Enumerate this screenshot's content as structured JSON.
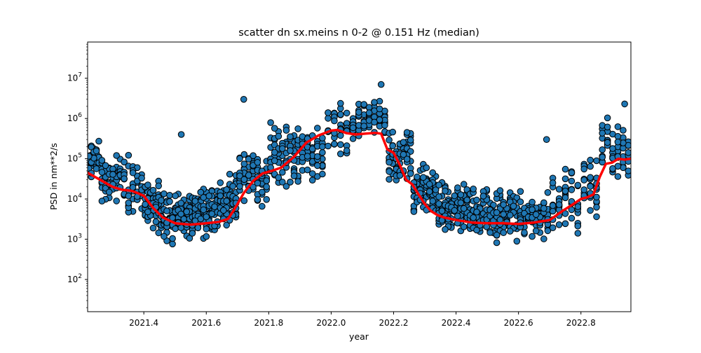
{
  "chart_data": {
    "type": "scatter",
    "title": "scatter dn sx.meins n 0-2 @ 0.151 Hz (median)",
    "xlabel": "year",
    "ylabel": "PSD in nm**2/s",
    "xlim": [
      2021.22,
      2022.96
    ],
    "ylim_log10": [
      1.2,
      7.9
    ],
    "y_scale": "log",
    "grid": false,
    "x_ticks": [
      {
        "value": 2021.4,
        "label": "2021.4"
      },
      {
        "value": 2021.6,
        "label": "2021.6"
      },
      {
        "value": 2021.8,
        "label": "2021.8"
      },
      {
        "value": 2022.0,
        "label": "2022.0"
      },
      {
        "value": 2022.2,
        "label": "2022.2"
      },
      {
        "value": 2022.4,
        "label": "2022.4"
      },
      {
        "value": 2022.6,
        "label": "2022.6"
      },
      {
        "value": 2022.8,
        "label": "2022.8"
      }
    ],
    "y_ticks": [
      {
        "value": 100,
        "exp": "2"
      },
      {
        "value": 1000,
        "exp": "3"
      },
      {
        "value": 10000,
        "exp": "4"
      },
      {
        "value": 100000,
        "exp": "5"
      },
      {
        "value": 1000000,
        "exp": "6"
      },
      {
        "value": 10000000,
        "exp": "7"
      }
    ],
    "scatter_color": "#1f77b4",
    "median_color": "#ff0000",
    "median": {
      "name": "median",
      "x": [
        2021.22,
        2021.26,
        2021.3,
        2021.33,
        2021.36,
        2021.38,
        2021.4,
        2021.43,
        2021.46,
        2021.5,
        2021.55,
        2021.6,
        2021.64,
        2021.67,
        2021.69,
        2021.72,
        2021.75,
        2021.78,
        2021.81,
        2021.84,
        2021.88,
        2021.92,
        2021.96,
        2022.0,
        2022.02,
        2022.05,
        2022.08,
        2022.11,
        2022.14,
        2022.16,
        2022.18,
        2022.2,
        2022.22,
        2022.24,
        2022.26,
        2022.28,
        2022.3,
        2022.32,
        2022.34,
        2022.36,
        2022.4,
        2022.45,
        2022.5,
        2022.55,
        2022.6,
        2022.65,
        2022.7,
        2022.74,
        2022.77,
        2022.8,
        2022.82,
        2022.84,
        2022.86,
        2022.88,
        2022.9,
        2022.92,
        2022.94,
        2022.96
      ],
      "y": [
        45000,
        30000,
        20000,
        17000,
        16000,
        14000,
        12000,
        6000,
        3500,
        2500,
        2300,
        2500,
        2700,
        3200,
        5500,
        14000,
        28000,
        43000,
        50000,
        60000,
        110000,
        250000,
        380000,
        500000,
        520000,
        430000,
        400000,
        420000,
        440000,
        420000,
        170000,
        140000,
        70000,
        30000,
        23000,
        13000,
        7500,
        5000,
        4000,
        3500,
        3000,
        2600,
        2500,
        2500,
        2400,
        2600,
        3000,
        5000,
        7000,
        10000,
        11000,
        13000,
        35000,
        75000,
        80000,
        100000,
        95000,
        100000
      ]
    },
    "scatter_clusters": [
      {
        "x": [
          2021.22,
          2021.26
        ],
        "y_range": [
          20000,
          400000
        ],
        "n": 45
      },
      {
        "x": [
          2021.26,
          2021.33
        ],
        "y_range": [
          5000,
          200000
        ],
        "n": 60
      },
      {
        "x": [
          2021.33,
          2021.4
        ],
        "y_range": [
          3000,
          150000
        ],
        "n": 50
      },
      {
        "x": [
          2021.4,
          2021.46
        ],
        "y_range": [
          1000,
          40000
        ],
        "n": 70
      },
      {
        "x": [
          2021.46,
          2021.56
        ],
        "y_range": [
          700,
          20000
        ],
        "n": 110
      },
      {
        "x": [
          2021.56,
          2021.64
        ],
        "y_range": [
          800,
          40000
        ],
        "n": 90
      },
      {
        "x": [
          2021.64,
          2021.7
        ],
        "y_range": [
          1000,
          60000
        ],
        "n": 60
      },
      {
        "x": [
          2021.7,
          2021.8
        ],
        "y_range": [
          5000,
          300000
        ],
        "n": 70
      },
      {
        "x": [
          2021.8,
          2021.9
        ],
        "y_range": [
          10000,
          1500000
        ],
        "n": 80
      },
      {
        "x": [
          2021.9,
          2021.98
        ],
        "y_range": [
          20000,
          1000000
        ],
        "n": 50
      },
      {
        "x": [
          2021.98,
          2022.08
        ],
        "y_range": [
          100000,
          3000000
        ],
        "n": 50
      },
      {
        "x": [
          2022.08,
          2022.18
        ],
        "y_range": [
          200000,
          5000000
        ],
        "n": 60
      },
      {
        "x": [
          2022.18,
          2022.26
        ],
        "y_range": [
          10000,
          800000
        ],
        "n": 70
      },
      {
        "x": [
          2022.26,
          2022.34
        ],
        "y_range": [
          2000,
          100000
        ],
        "n": 80
      },
      {
        "x": [
          2022.34,
          2022.45
        ],
        "y_range": [
          800,
          50000
        ],
        "n": 110
      },
      {
        "x": [
          2022.45,
          2022.6
        ],
        "y_range": [
          600,
          30000
        ],
        "n": 140
      },
      {
        "x": [
          2022.6,
          2022.7
        ],
        "y_range": [
          700,
          20000
        ],
        "n": 80
      },
      {
        "x": [
          2022.7,
          2022.8
        ],
        "y_range": [
          1000,
          100000
        ],
        "n": 50
      },
      {
        "x": [
          2022.8,
          2022.86
        ],
        "y_range": [
          2000,
          200000
        ],
        "n": 30
      },
      {
        "x": [
          2022.86,
          2022.96
        ],
        "y_range": [
          20000,
          1500000
        ],
        "n": 60
      }
    ],
    "scatter_outliers": [
      {
        "x": 2021.52,
        "y": 400000
      },
      {
        "x": 2021.72,
        "y": 3000000
      },
      {
        "x": 2022.16,
        "y": 7000000
      },
      {
        "x": 2022.69,
        "y": 300000
      },
      {
        "x": 2022.94,
        "y": 2300000
      }
    ]
  }
}
